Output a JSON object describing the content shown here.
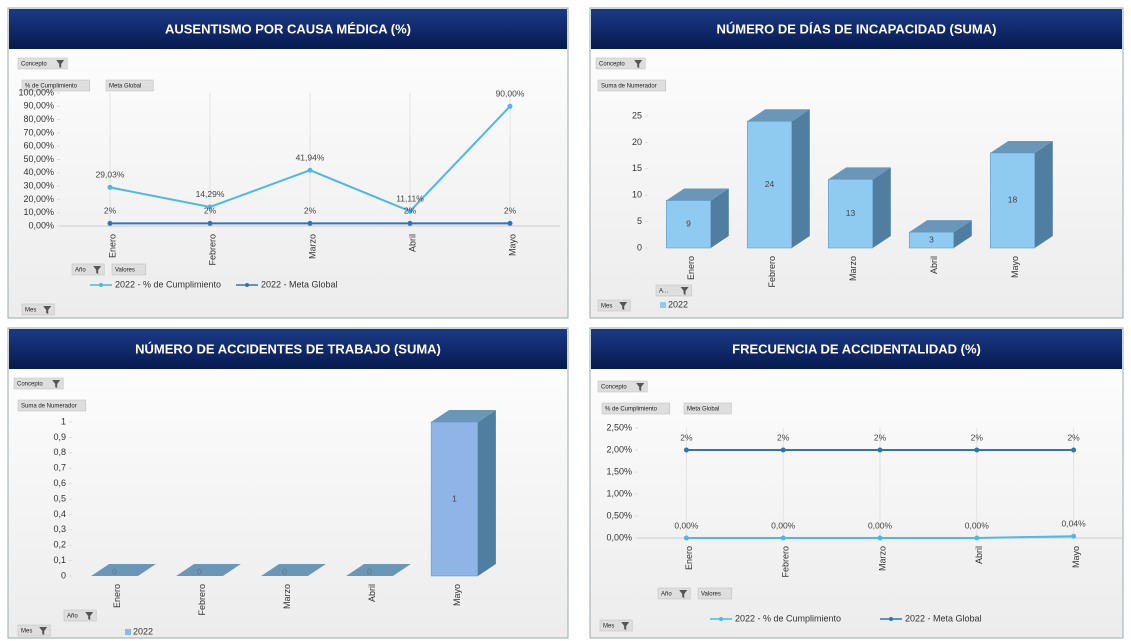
{
  "chart_data": [
    {
      "type": "line",
      "title": "AUSENTISMO POR CAUSA MÉDICA (%)",
      "buttons": [
        "Concepto",
        "% de Cumplimiento",
        "Meta Global",
        "Año",
        "Valores",
        "Mes"
      ],
      "categories": [
        "Enero",
        "Febrero",
        "Marzo",
        "Abril",
        "Mayo"
      ],
      "series": [
        {
          "name": "2022 - % de Cumplimiento",
          "color": "#4db8e8",
          "values": [
            29.03,
            14.29,
            41.94,
            11.11,
            90
          ],
          "value_labels": [
            "29,03%",
            "14,29%",
            "41,94%",
            "11,11%",
            "90,00%"
          ]
        },
        {
          "name": "2022 - Meta Global",
          "color": "#2e75b6",
          "values": [
            2,
            2,
            2,
            2,
            2
          ],
          "value_labels": [
            "2%",
            "2%",
            "2%",
            "2%",
            "2%"
          ]
        }
      ],
      "ylim": [
        0,
        100
      ],
      "yticks": [
        {
          "value": 0,
          "label": "0,00%"
        },
        {
          "value": 10,
          "label": "10,00%"
        },
        {
          "value": 20,
          "label": "20,00%"
        },
        {
          "value": 30,
          "label": "30,00%"
        },
        {
          "value": 40,
          "label": "40,00%"
        },
        {
          "value": 50,
          "label": "50,00%"
        },
        {
          "value": 60,
          "label": "60,00%"
        },
        {
          "value": 70,
          "label": "70,00%"
        },
        {
          "value": 80,
          "label": "80,00%"
        },
        {
          "value": 90,
          "label": "90,00%"
        },
        {
          "value": 100,
          "label": "100,00%"
        }
      ]
    },
    {
      "type": "bar",
      "title": "NÚMERO DE DÍAS DE INCAPACIDAD (SUMA)",
      "buttons": [
        "Concepto",
        "Suma de Numerador",
        "A...",
        "Mes"
      ],
      "categories": [
        "Enero",
        "Febrero",
        "Marzo",
        "Abril",
        "Mayo"
      ],
      "series": [
        {
          "name": "2022",
          "color": "#8fcaf0",
          "values": [
            9,
            24,
            13,
            3,
            18
          ]
        }
      ],
      "ylim": [
        0,
        25
      ],
      "yticks": [
        0,
        5,
        10,
        15,
        20,
        25
      ]
    },
    {
      "type": "bar",
      "title": "NÚMERO DE ACCIDENTES DE TRABAJO  (SUMA)",
      "buttons": [
        "Concepto",
        "Suma de Numerador",
        "Año",
        "Mes"
      ],
      "categories": [
        "Enero",
        "Febrero",
        "Marzo",
        "Abril",
        "Mayo"
      ],
      "series": [
        {
          "name": "2022",
          "color": "#8fb4e6",
          "values": [
            0,
            0,
            0,
            0,
            1
          ]
        }
      ],
      "ylim": [
        0,
        1
      ],
      "yticks": [
        0,
        {
          "value": 0.1,
          "label": "0,1"
        },
        {
          "value": 0.2,
          "label": "0,2"
        },
        {
          "value": 0.3,
          "label": "0,3"
        },
        {
          "value": 0.4,
          "label": "0,4"
        },
        {
          "value": 0.5,
          "label": "0,5"
        },
        {
          "value": 0.6,
          "label": "0,6"
        },
        {
          "value": 0.7,
          "label": "0,7"
        },
        {
          "value": 0.8,
          "label": "0,8"
        },
        {
          "value": 0.9,
          "label": "0,9"
        },
        1
      ]
    },
    {
      "type": "line",
      "title": "FRECUENCIA DE ACCIDENTALIDAD (%)",
      "buttons": [
        "Concepto",
        "% de Cumplimiento",
        "Meta Global",
        "Año",
        "Valores",
        "Mes"
      ],
      "categories": [
        "Enero",
        "Febrero",
        "Marzo",
        "Abril",
        "Mayo"
      ],
      "series": [
        {
          "name": "2022 - % de Cumplimiento",
          "color": "#4db8e8",
          "values": [
            0,
            0,
            0,
            0,
            0.04
          ],
          "value_labels": [
            "0,00%",
            "0,00%",
            "0,00%",
            "0,00%",
            "0,04%"
          ]
        },
        {
          "name": "2022 - Meta Global",
          "color": "#2e75b6",
          "values": [
            2,
            2,
            2,
            2,
            2
          ],
          "value_labels": [
            "2%",
            "2%",
            "2%",
            "2%",
            "2%"
          ]
        }
      ],
      "ylim": [
        0,
        2.5
      ],
      "yticks": [
        {
          "value": 0,
          "label": "0,00%"
        },
        {
          "value": 0.5,
          "label": "0,50%"
        },
        {
          "value": 1,
          "label": "1,00%"
        },
        {
          "value": 1.5,
          "label": "1,50%"
        },
        {
          "value": 2,
          "label": "2,00%"
        },
        {
          "value": 2.5,
          "label": "2,50%"
        }
      ]
    }
  ]
}
